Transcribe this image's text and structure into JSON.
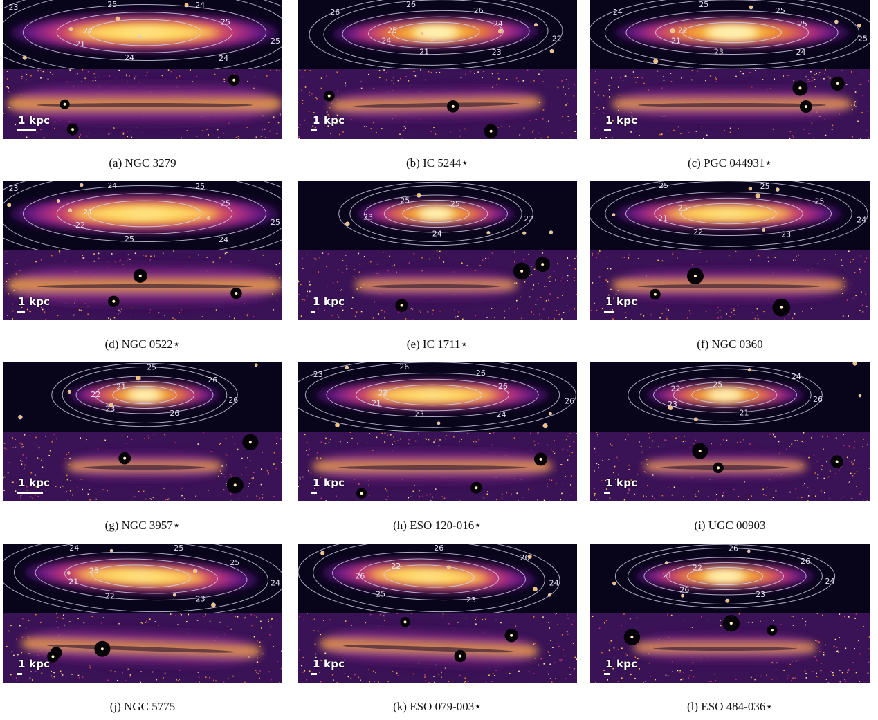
{
  "figure": {
    "panels": [
      {
        "caption": "(a) NGC 3279",
        "scale_label": "1 kpc",
        "contour_labels": [
          "25",
          "24",
          "24",
          "21",
          "22",
          "23",
          "25",
          "24",
          "25"
        ]
      },
      {
        "caption": "(b) IC 5244⋆",
        "scale_label": "1 kpc",
        "contour_labels": [
          "22",
          "23",
          "21",
          "24",
          "25",
          "26",
          "26",
          "26",
          "24"
        ]
      },
      {
        "caption": "(c) PGC 044931⋆",
        "scale_label": "1 kpc",
        "contour_labels": [
          "25",
          "24",
          "23",
          "21",
          "22",
          "24",
          "25",
          "25",
          "25"
        ]
      },
      {
        "caption": "(d) NGC 0522⋆",
        "scale_label": "1 kpc",
        "contour_labels": [
          "25",
          "24",
          "25",
          "22",
          "21",
          "23",
          "24",
          "25",
          "25"
        ]
      },
      {
        "caption": "(e) IC 1711⋆",
        "scale_label": "1 kpc",
        "contour_labels": [
          "22",
          "24",
          "23",
          "25",
          "25"
        ]
      },
      {
        "caption": "(f) NGC 0360",
        "scale_label": "1 kpc",
        "contour_labels": [
          "24",
          "23",
          "22",
          "21",
          "25",
          "25",
          "25",
          "25"
        ]
      },
      {
        "caption": "(g) NGC 3957⋆",
        "scale_label": "1 kpc",
        "contour_labels": [
          "26",
          "26",
          "23",
          "22",
          "21",
          "25",
          "26"
        ]
      },
      {
        "caption": "(h) ESO 120-016⋆",
        "scale_label": "1 kpc",
        "contour_labels": [
          "26",
          "24",
          "23",
          "21",
          "22",
          "23",
          "26",
          "26",
          "26"
        ]
      },
      {
        "caption": "(i) UGC 00903",
        "scale_label": "1 kpc",
        "contour_labels": [
          "26",
          "21",
          "23",
          "22",
          "25",
          "24"
        ]
      },
      {
        "caption": "(j) NGC 5775",
        "scale_label": "1 kpc",
        "contour_labels": [
          "24",
          "23",
          "22",
          "21",
          "25",
          "24",
          "25",
          "25"
        ]
      },
      {
        "caption": "(k) ESO 079-003⋆",
        "scale_label": "1 kpc",
        "contour_labels": [
          "24",
          "23",
          "25",
          "26",
          "22",
          "26",
          "26"
        ]
      },
      {
        "caption": "(l) ESO 484-036⋆",
        "scale_label": "1 kpc",
        "contour_labels": [
          "24",
          "23",
          "26",
          "21",
          "22",
          "26",
          "26"
        ]
      }
    ]
  }
}
